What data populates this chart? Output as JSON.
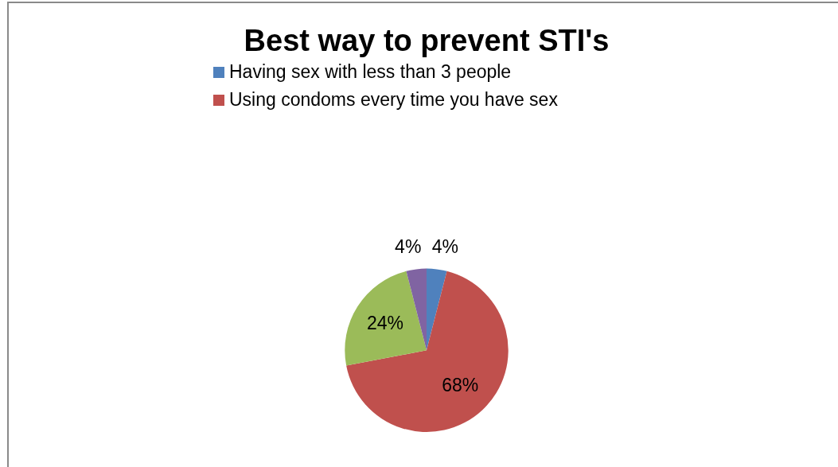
{
  "chart_data": {
    "type": "pie",
    "title": "Best way to prevent STI's",
    "categories": [
      "Having sex with less than 3 people",
      "Using condoms every time you have sex",
      null,
      null
    ],
    "values": [
      4,
      68,
      24,
      4
    ],
    "colors": [
      "#4f81bd",
      "#c0504d",
      "#9bbb59",
      "#8064a2"
    ],
    "value_labels": [
      "4%",
      "68%",
      "24%",
      "4%"
    ],
    "legend": "top"
  }
}
